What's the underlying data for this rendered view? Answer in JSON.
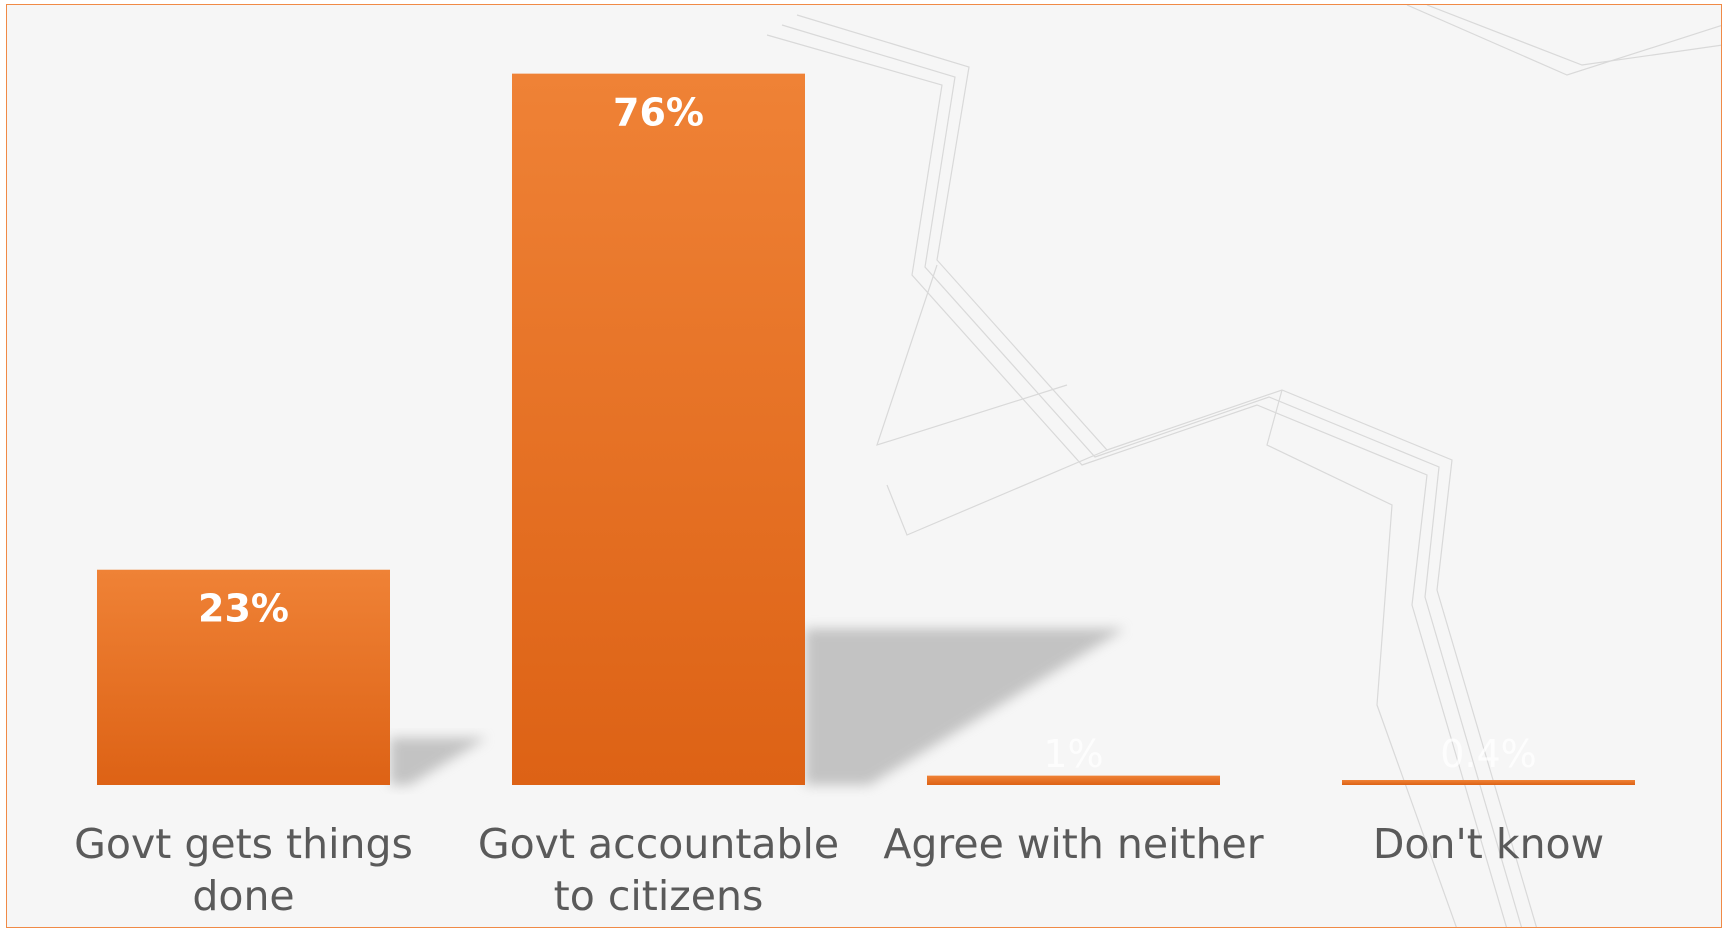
{
  "chart_data": {
    "type": "bar",
    "categories": [
      [
        "Govt gets things",
        "done"
      ],
      [
        "Govt accountable",
        "to citizens"
      ],
      [
        "Agree with neither"
      ],
      [
        "Don't know"
      ]
    ],
    "values": [
      23,
      76,
      1,
      0.4
    ],
    "data_labels": [
      "23%",
      "76%",
      "1%",
      "0.4%"
    ],
    "title": "",
    "xlabel": "",
    "ylabel": "",
    "ylim": [
      0,
      80
    ],
    "grid": false,
    "colors": {
      "bar_top": "#ef8236",
      "bar_bottom": "#dd6215",
      "border": "#f08a46",
      "background": "#f6f6f6",
      "label_text": "#5a5a5a"
    }
  }
}
